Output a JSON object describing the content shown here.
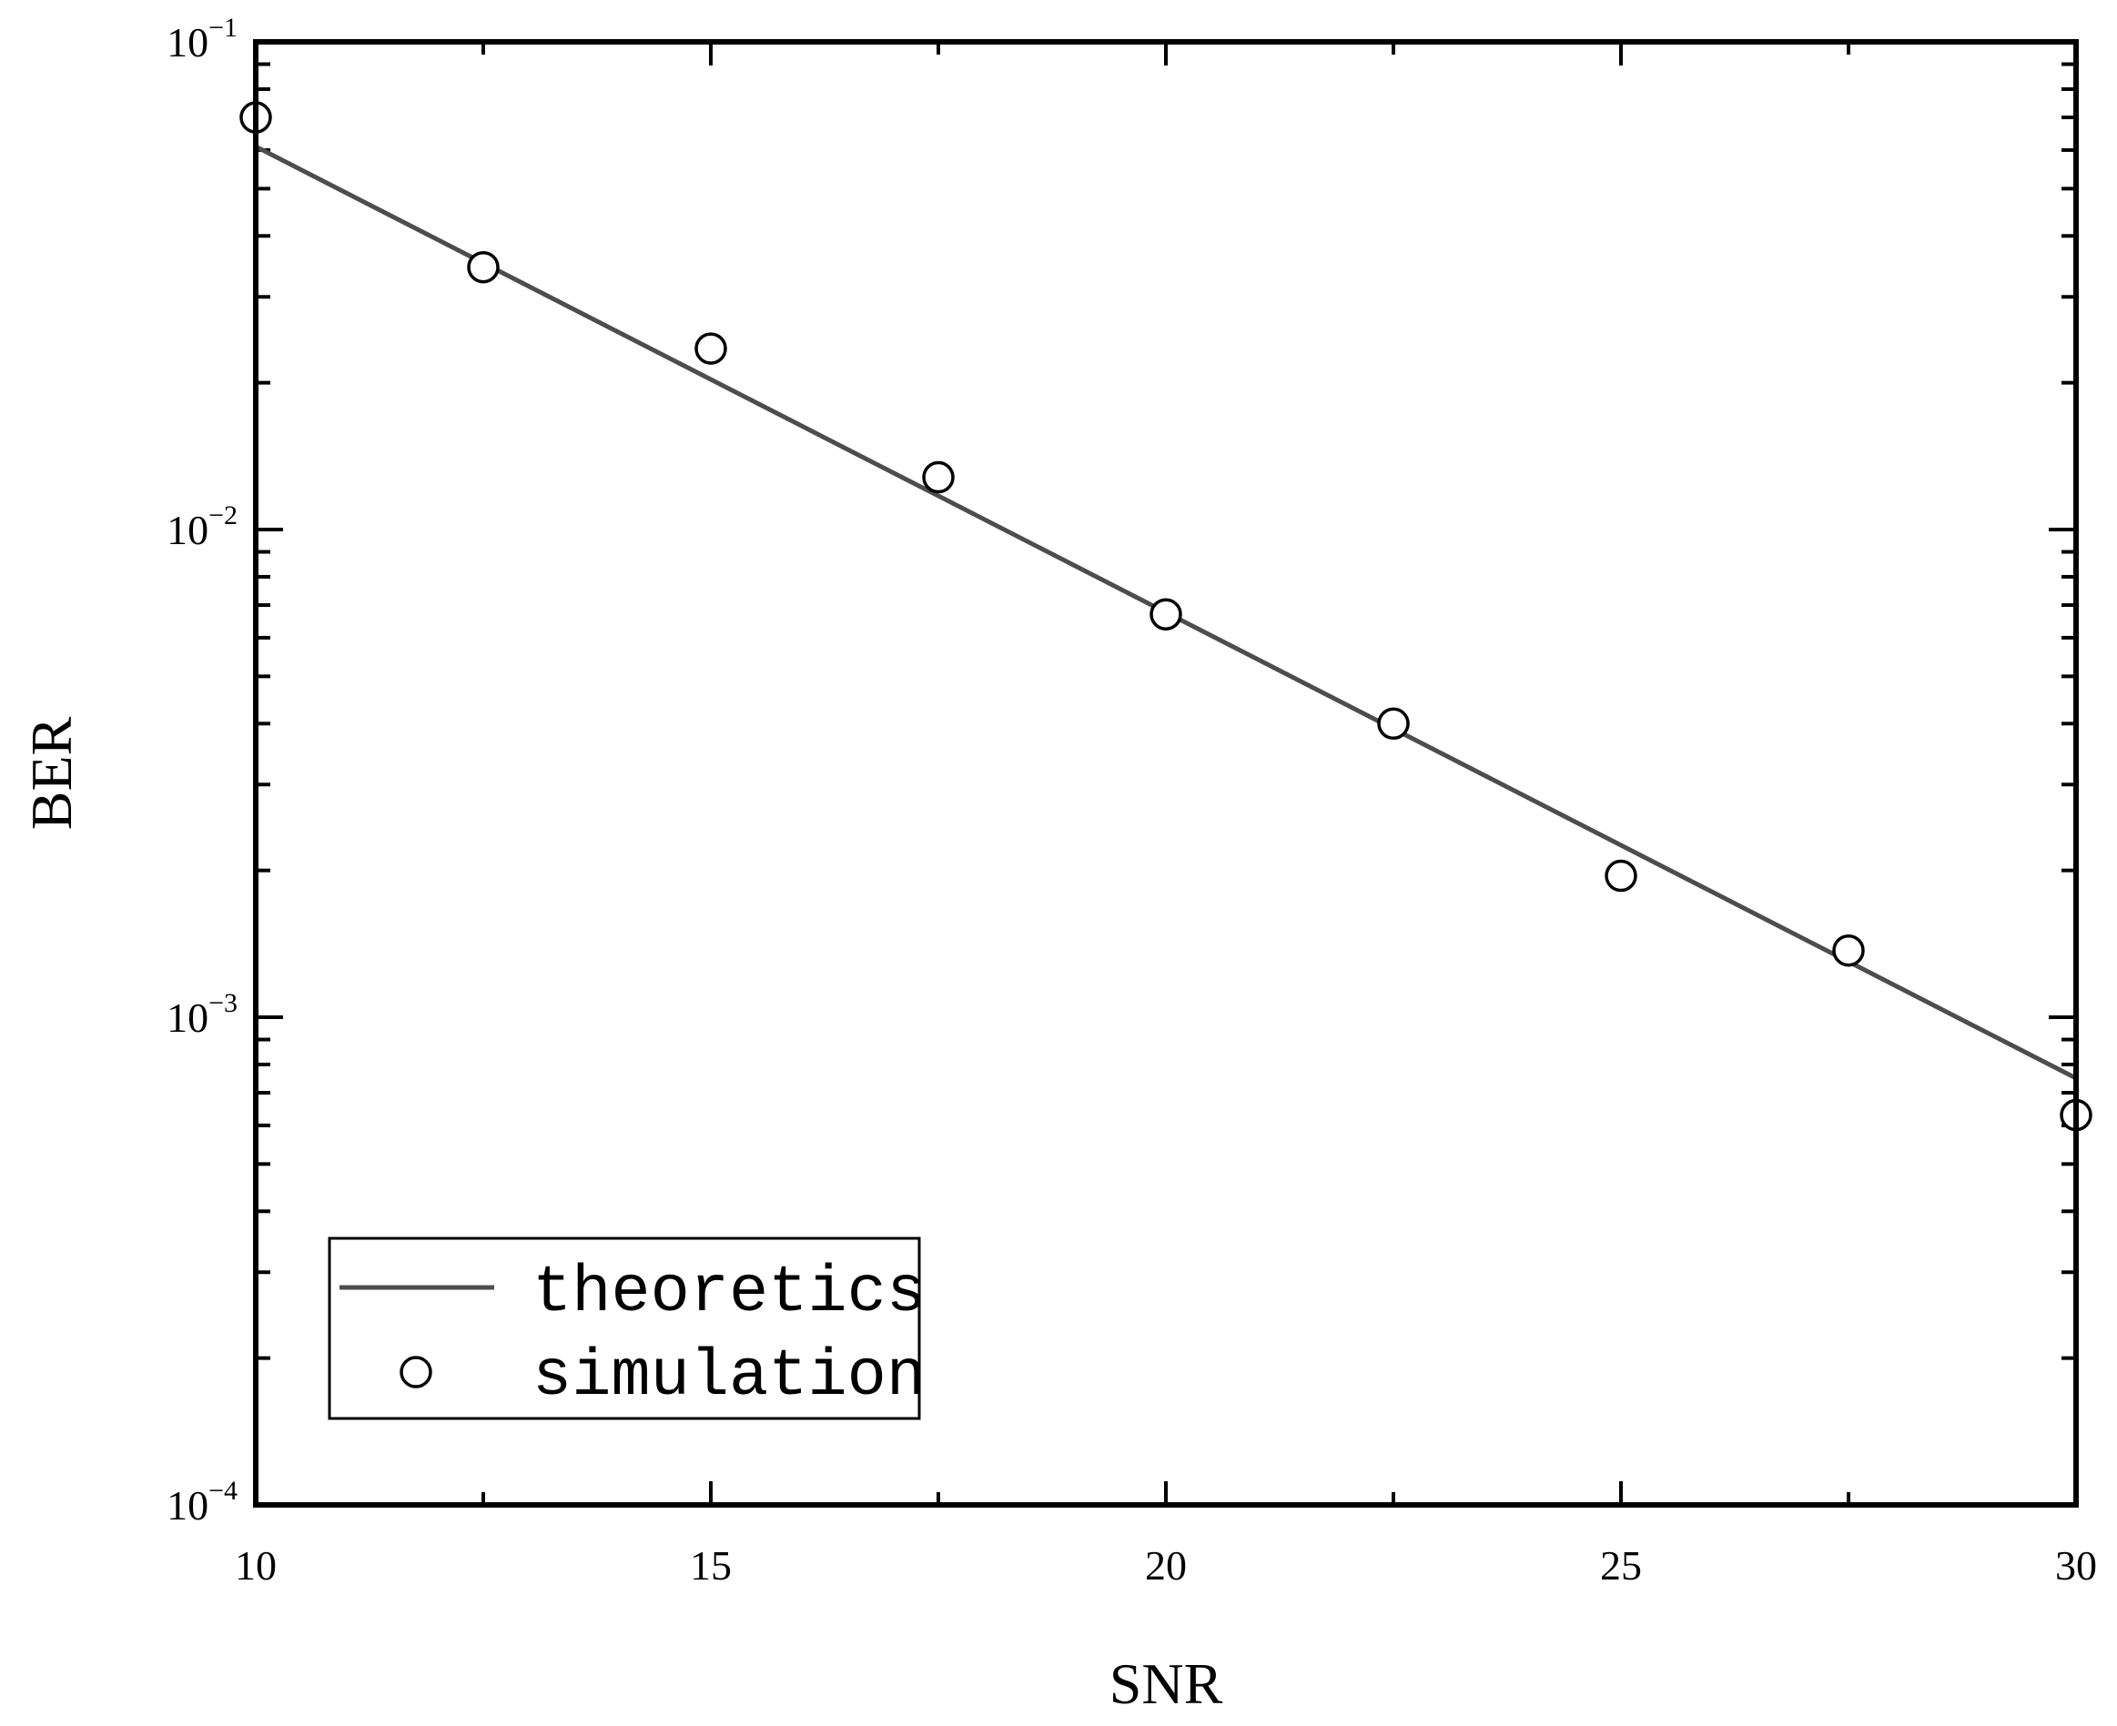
{
  "chart_data": {
    "type": "line",
    "xlabel": "SNR",
    "ylabel": "BER",
    "xlim": [
      10,
      30
    ],
    "ylim": [
      0.0001,
      0.1
    ],
    "yscale": "log",
    "xticks": [
      10,
      15,
      20,
      25,
      30
    ],
    "xtick_labels": [
      "10",
      "15",
      "20",
      "25",
      "30"
    ],
    "yticks": [
      0.1,
      0.01,
      0.001,
      0.0001
    ],
    "ytick_labels": [
      {
        "base": "10",
        "exp": "−1"
      },
      {
        "base": "10",
        "exp": "−2"
      },
      {
        "base": "10",
        "exp": "−3"
      },
      {
        "base": "10",
        "exp": "−4"
      }
    ],
    "grid": false,
    "legend_position": "bottom-left",
    "series": [
      {
        "name": "theoretics",
        "style": "line",
        "color": "#4d4d4d",
        "x": [
          10,
          30
        ],
        "y": [
          0.061,
          0.00075
        ]
      },
      {
        "name": "simulation",
        "style": "marker-circle",
        "color": "#000000",
        "x": [
          10,
          12.5,
          15,
          17.5,
          20,
          22.5,
          25,
          27.5,
          30
        ],
        "y": [
          0.07,
          0.0345,
          0.0235,
          0.0128,
          0.0067,
          0.004,
          0.00195,
          0.00137,
          0.00063
        ]
      }
    ]
  }
}
